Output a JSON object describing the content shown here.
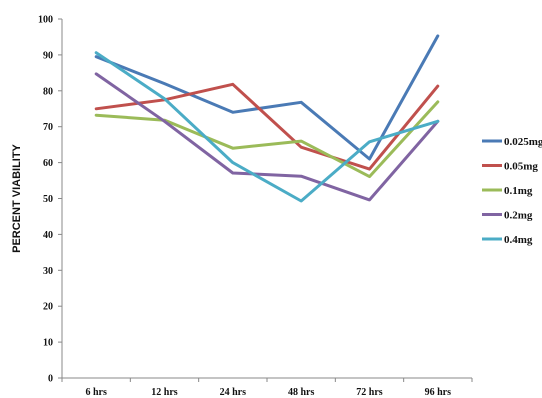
{
  "chart_data": {
    "type": "line",
    "ylabel": "PERCENT VIABILITY",
    "xlabel": "",
    "title": "",
    "categories": [
      "6 hrs",
      "12 hrs",
      "24 hrs",
      "48 hrs",
      "72 hrs",
      "96 hrs"
    ],
    "ylim": [
      0,
      100
    ],
    "yticks": [
      0,
      10,
      20,
      30,
      40,
      50,
      60,
      70,
      80,
      90,
      100
    ],
    "grid": false,
    "legend_position": "right",
    "series": [
      {
        "name": "0.025mg",
        "color": "#4a7ab5",
        "values": [
          89.5,
          82,
          74,
          76.8,
          61,
          95.3
        ]
      },
      {
        "name": "0.05mg",
        "color": "#c0504d",
        "values": [
          75,
          77.5,
          81.8,
          64.3,
          58.2,
          81.3
        ]
      },
      {
        "name": "0.1mg",
        "color": "#9bbb59",
        "values": [
          73.2,
          71.8,
          64,
          66,
          56.1,
          76.9
        ]
      },
      {
        "name": "0.2mg",
        "color": "#8064a2",
        "values": [
          84.7,
          71.5,
          57.1,
          56.2,
          49.6,
          71.5
        ]
      },
      {
        "name": "0.4mg",
        "color": "#4bacc6",
        "values": [
          90.6,
          77.8,
          60,
          49.3,
          65.8,
          71.5
        ]
      }
    ]
  }
}
